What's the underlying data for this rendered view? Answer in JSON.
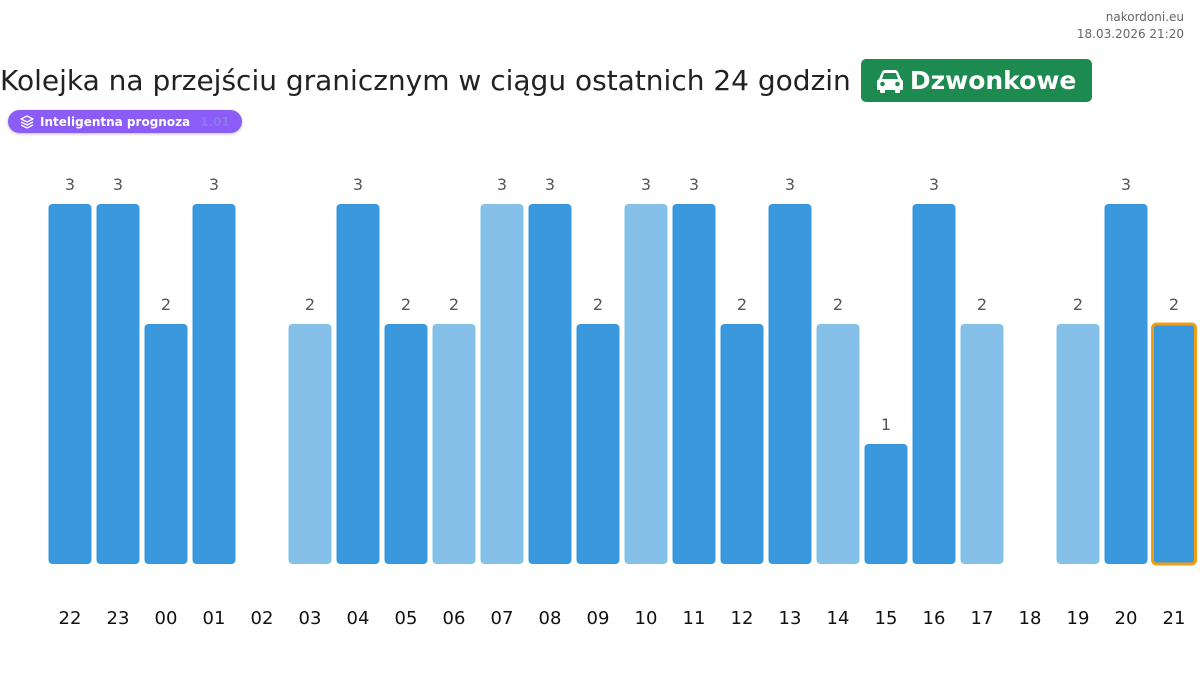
{
  "header": {
    "site": "nakordoni.eu",
    "datetime": "18.03.2026 21:20",
    "title": "Kolejka na przejściu granicznym w ciągu ostatnich 24 godzin",
    "crossing_name": "Dzwonkowe",
    "crossing_icon": "car-icon",
    "crossing_color": "#1d8a4f"
  },
  "badge": {
    "label": "Inteligentna prognoza",
    "version": "1.01",
    "icon": "layers-icon",
    "color": "#8b5cf6"
  },
  "chart_data": {
    "type": "bar",
    "title": "",
    "xlabel": "",
    "ylabel": "",
    "ylim": [
      0,
      3
    ],
    "grid": false,
    "legend": "none",
    "categories": [
      "22",
      "23",
      "00",
      "01",
      "02",
      "03",
      "04",
      "05",
      "06",
      "07",
      "08",
      "09",
      "10",
      "11",
      "12",
      "13",
      "14",
      "15",
      "16",
      "17",
      "18",
      "19",
      "20",
      "21"
    ],
    "values": [
      3,
      3,
      2,
      3,
      null,
      2,
      3,
      2,
      2,
      3,
      3,
      2,
      3,
      3,
      2,
      3,
      2,
      1,
      3,
      2,
      null,
      2,
      3,
      2
    ],
    "shade": [
      "dark",
      "dark",
      "dark",
      "dark",
      "none",
      "light",
      "dark",
      "dark",
      "light",
      "light",
      "dark",
      "dark",
      "light",
      "dark",
      "dark",
      "dark",
      "light",
      "dark",
      "dark",
      "light",
      "none",
      "light",
      "dark",
      "dark"
    ],
    "highlight_index": 23,
    "colors": {
      "dark": "#3898db",
      "light": "#85c0e9",
      "highlight_border": "#f39c12",
      "value_label": "#555555",
      "tick_label": "#111111"
    }
  }
}
